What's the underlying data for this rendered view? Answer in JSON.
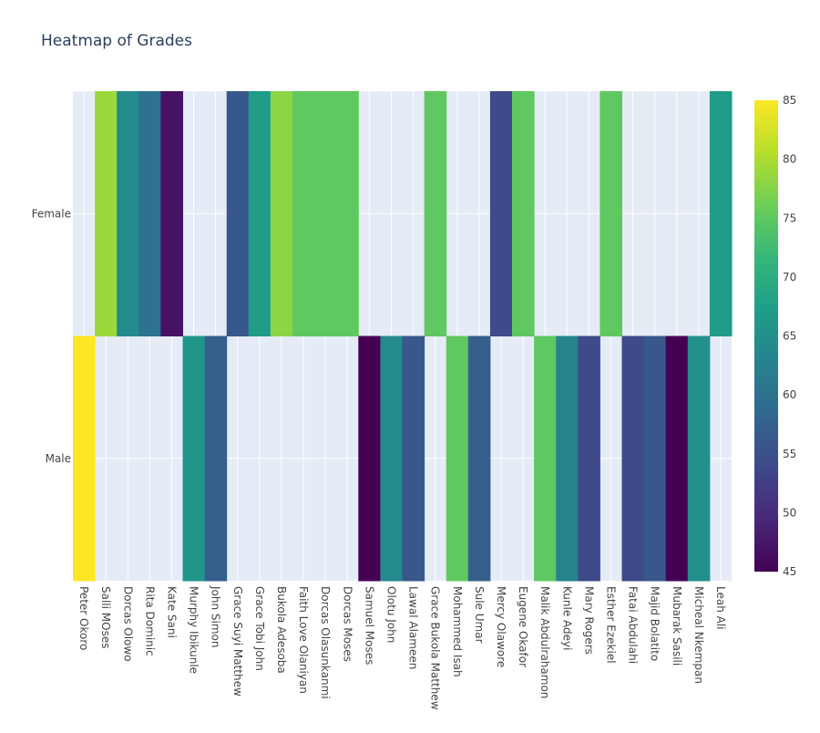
{
  "chart_data": {
    "type": "heatmap",
    "title": "Heatmap of Grades",
    "xlabel": "",
    "ylabel": "",
    "x_categories": [
      "Peter Okoro",
      "Salli MOses",
      "Dorcas Olowo",
      "Rita Dominic",
      "Kate Sani",
      "Murphy Ibikunle",
      "John Simon",
      "Grace Suyi Matthew",
      "Grace Tobi John",
      "Bukola Adesoba",
      "Faith Love Olaniyan",
      "Dorcas Olasunkanmi",
      "Dorcas Moses",
      "Samuel Moses",
      "Olotu John",
      "Lawal Alameen",
      "Grace Bukola Matthew",
      "Mohammed Isah",
      "Sule Umar",
      "Mercy Olawore",
      "Eugene Okafor",
      "Malik Abdulrahamon",
      "Kunle Adeyi",
      "Mary Rogers",
      "Esther Ezekiel",
      "Fatai Abdulahi",
      "Majid Bolatito",
      "Mubarak Sasili",
      "Micheal Nkempan",
      "Leah Ali"
    ],
    "y_categories": [
      "Female",
      "Male"
    ],
    "z": [
      [
        null,
        79,
        64,
        60,
        47,
        null,
        null,
        56,
        67,
        78,
        75,
        75,
        75,
        null,
        null,
        null,
        75,
        null,
        null,
        54,
        75,
        null,
        null,
        null,
        75,
        null,
        null,
        null,
        null,
        67
      ],
      [
        85,
        null,
        null,
        null,
        null,
        66,
        57,
        null,
        null,
        null,
        null,
        null,
        null,
        45,
        64,
        56,
        null,
        75,
        57,
        null,
        null,
        75,
        63,
        54,
        null,
        54,
        56,
        45,
        65,
        null
      ]
    ],
    "zmin": 45,
    "zmax": 85,
    "colorscale": "Viridis",
    "colorbar_ticks": [
      45,
      50,
      55,
      60,
      65,
      70,
      75,
      80,
      85
    ],
    "grid": true,
    "background_color": "#e5ecf6"
  }
}
